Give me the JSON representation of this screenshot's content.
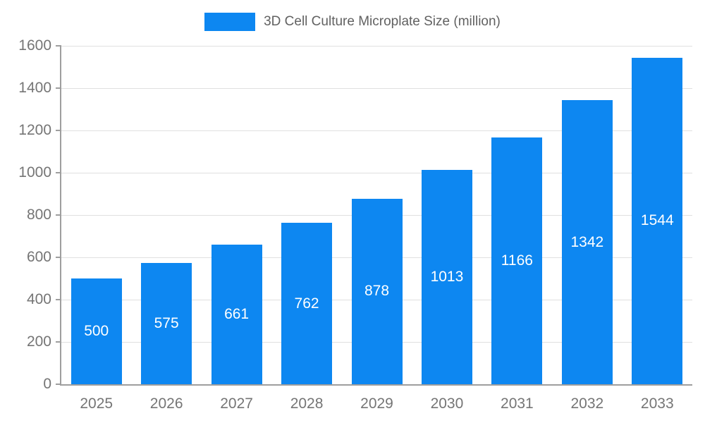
{
  "chart_data": {
    "type": "bar",
    "title": "3D Cell Culture Microplate Size (million)",
    "categories": [
      "2025",
      "2026",
      "2027",
      "2028",
      "2029",
      "2030",
      "2031",
      "2032",
      "2033"
    ],
    "values": [
      500,
      575,
      661,
      762,
      878,
      1013,
      1166,
      1342,
      1544
    ],
    "xlabel": "",
    "ylabel": "",
    "ylim": [
      0,
      1600
    ],
    "yticks": [
      0,
      200,
      400,
      600,
      800,
      1000,
      1200,
      1400,
      1600
    ],
    "grid": "horizontal",
    "legend_position": "top-center",
    "bar_color": "#0d87f1",
    "value_label_color": "#ffffff",
    "axis_label_color": "#757575"
  }
}
